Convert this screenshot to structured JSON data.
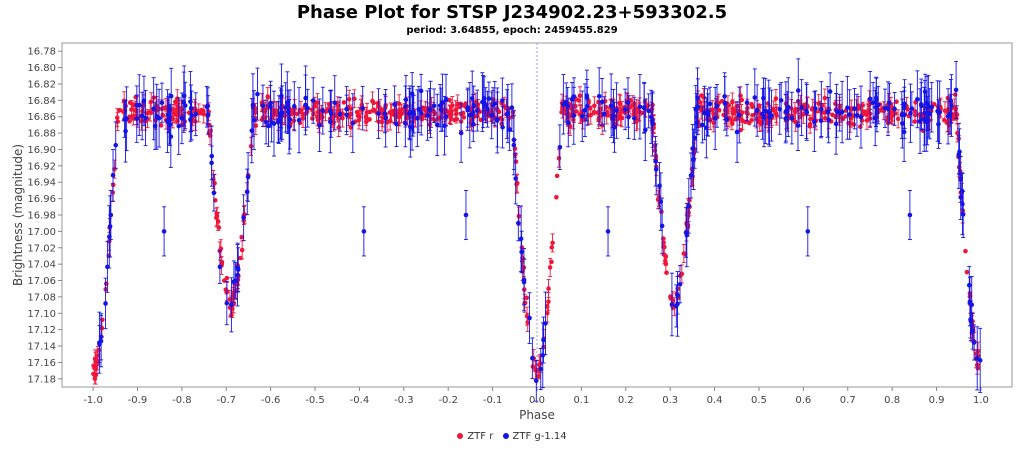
{
  "chart_data": {
    "type": "scatter",
    "title": "Phase Plot for STSP J234902.23+593302.5",
    "subtitle": "period: 3.64855, epoch: 2459455.829",
    "xlabel": "Phase",
    "ylabel": "Brightness (magnitude)",
    "xlim": [
      -1.07,
      1.07
    ],
    "ylim": [
      17.19,
      16.77
    ],
    "y_inverted": true,
    "grid": false,
    "x_ticks": [
      "-1.0",
      "-0.9",
      "-0.8",
      "-0.7",
      "-0.6",
      "-0.5",
      "-0.4",
      "-0.3",
      "-0.2",
      "-0.1",
      "0.0",
      "0.1",
      "0.2",
      "0.3",
      "0.4",
      "0.5",
      "0.6",
      "0.7",
      "0.8",
      "0.9",
      "1.0"
    ],
    "y_ticks": [
      "16.78",
      "16.80",
      "16.82",
      "16.84",
      "16.86",
      "16.88",
      "16.90",
      "16.92",
      "16.94",
      "16.96",
      "16.98",
      "17.00",
      "17.02",
      "17.04",
      "17.06",
      "17.08",
      "17.10",
      "17.12",
      "17.14",
      "17.16",
      "17.18"
    ],
    "reference_line_x": 0.0,
    "light_curve": {
      "baseline": 16.855,
      "primary_eclipse": {
        "center": 0.0,
        "depth": 17.175,
        "half_width": 0.055
      },
      "secondary_eclipse": {
        "center": 0.31,
        "depth": 17.09,
        "half_width": 0.05
      },
      "secondary_eclipse_mirror": {
        "center": -0.69,
        "depth": 17.09,
        "half_width": 0.05
      },
      "outer_eclipses": [
        {
          "center": -1.0,
          "depth": 17.175,
          "half_width": 0.055
        },
        {
          "center": 1.0,
          "depth": 17.175,
          "half_width": 0.055
        }
      ],
      "scatter": 0.02,
      "typical_error": 0.02
    },
    "outliers": [
      {
        "x": -0.84,
        "y": 17.0,
        "err": 0.02
      },
      {
        "x": -0.39,
        "y": 17.0,
        "err": 0.02
      },
      {
        "x": -0.16,
        "y": 16.98,
        "err": 0.02
      },
      {
        "x": 0.16,
        "y": 17.0,
        "err": 0.02
      },
      {
        "x": 0.61,
        "y": 17.0,
        "err": 0.02
      },
      {
        "x": 0.84,
        "y": 16.98,
        "err": 0.02
      },
      {
        "x": -0.96,
        "y": 16.98,
        "err": 0.02
      }
    ],
    "series": [
      {
        "name": "ZTF r",
        "color": "#f0163a",
        "count": 900
      },
      {
        "name": "ZTF g-1.14",
        "color": "#1414e6",
        "count": 330
      }
    ],
    "legend_position": "bottom-center"
  }
}
